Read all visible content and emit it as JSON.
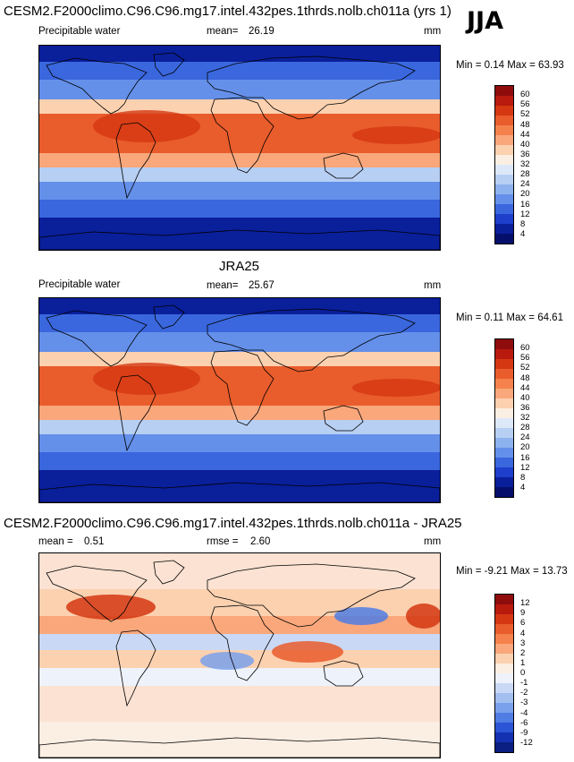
{
  "season": "JJA",
  "panels": [
    {
      "title": "CESM2.F2000climo.C96.C96.mg17.intel.432pes.1thrds.nolb.ch011a (yrs 1)",
      "variable": "Precipitable water",
      "mean_label": "mean=",
      "mean": "26.19",
      "units": "mm",
      "minmax_label": "Min =  0.14 Max = 63.93",
      "colorbar_levels": [
        "60",
        "56",
        "52",
        "48",
        "44",
        "40",
        "36",
        "32",
        "28",
        "24",
        "20",
        "16",
        "12",
        "8",
        "4"
      ],
      "colorbar_colors": [
        "#8e0c0c",
        "#b81a0e",
        "#d43712",
        "#e95c2c",
        "#f5824d",
        "#f9a77b",
        "#fbd1b0",
        "#fbeee2",
        "#dde8f8",
        "#b7cff3",
        "#8eb2ee",
        "#6490ea",
        "#3a67de",
        "#1d3fcb",
        "#0a1f9a",
        "#050f6b"
      ],
      "map_style": "model"
    },
    {
      "title": "JRA25",
      "variable": "Precipitable water",
      "mean_label": "mean=",
      "mean": "25.67",
      "units": "mm",
      "minmax_label": "Min =  0.11 Max = 64.61",
      "colorbar_levels": [
        "60",
        "56",
        "52",
        "48",
        "44",
        "40",
        "36",
        "32",
        "28",
        "24",
        "20",
        "16",
        "12",
        "8",
        "4"
      ],
      "colorbar_colors": [
        "#8e0c0c",
        "#b81a0e",
        "#d43712",
        "#e95c2c",
        "#f5824d",
        "#f9a77b",
        "#fbd1b0",
        "#fbeee2",
        "#dde8f8",
        "#b7cff3",
        "#8eb2ee",
        "#6490ea",
        "#3a67de",
        "#1d3fcb",
        "#0a1f9a",
        "#050f6b"
      ],
      "map_style": "obs"
    },
    {
      "title": "CESM2.F2000climo.C96.C96.mg17.intel.432pes.1thrds.nolb.ch011a - JRA25",
      "mean_label": "mean =",
      "mean": "0.51",
      "rmse_label": "rmse =",
      "rmse": "2.60",
      "units": "mm",
      "minmax_label": "Min = -9.21 Max = 13.73",
      "colorbar_levels": [
        "12",
        "9",
        "6",
        "4",
        "3",
        "2",
        "1",
        "0",
        "-1",
        "-2",
        "-3",
        "-4",
        "-6",
        "-9",
        "-12"
      ],
      "colorbar_colors": [
        "#8e0c0c",
        "#b81a0e",
        "#d43712",
        "#e95c2c",
        "#f5824d",
        "#f9a77b",
        "#fbd1b0",
        "#fbeee2",
        "#eef2fb",
        "#c9d9f5",
        "#a3bff0",
        "#7aa1eb",
        "#4f7de3",
        "#2a55d4",
        "#1431b2",
        "#0a1f80"
      ],
      "map_style": "diff"
    }
  ]
}
